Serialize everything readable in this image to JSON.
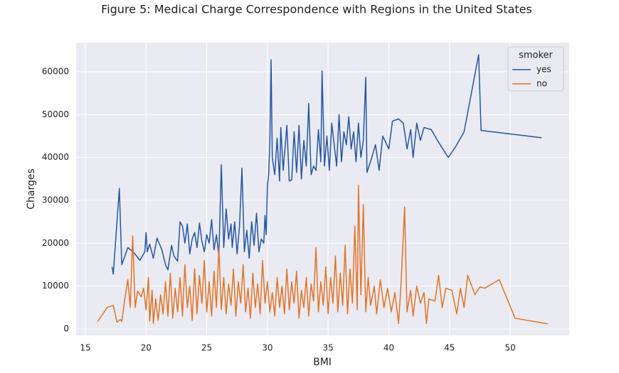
{
  "chart_data": {
    "type": "line",
    "title": "Figure 5: Medical Charge Correspondence with Regions in the United States",
    "x_label": "BMI",
    "y_label": "Charges",
    "xlim": [
      14.24,
      54.86
    ],
    "ylim": [
      -1490,
      66800
    ],
    "xticks": [
      15,
      20,
      25,
      30,
      35,
      40,
      45,
      50
    ],
    "yticks": [
      0,
      10000,
      20000,
      30000,
      40000,
      50000,
      60000
    ],
    "grid": true,
    "legend_title": "smoker",
    "legend_position": "upper right",
    "series": [
      {
        "name": "yes",
        "color": "#2456a0",
        "x": [
          17.2,
          17.3,
          17.8,
          18.0,
          18.5,
          19.0,
          19.5,
          19.9,
          20.0,
          20.1,
          20.3,
          20.6,
          20.9,
          21.3,
          21.6,
          21.8,
          22.1,
          22.3,
          22.6,
          22.8,
          23.0,
          23.2,
          23.4,
          23.6,
          23.8,
          24.0,
          24.2,
          24.4,
          24.6,
          24.8,
          25.0,
          25.2,
          25.4,
          25.6,
          25.8,
          26.0,
          26.2,
          26.4,
          26.6,
          26.8,
          27.0,
          27.1,
          27.3,
          27.5,
          27.7,
          27.9,
          28.1,
          28.3,
          28.5,
          28.7,
          28.9,
          29.1,
          29.3,
          29.5,
          29.7,
          29.8,
          29.9,
          30.0,
          30.1,
          30.2,
          30.3,
          30.4,
          30.6,
          30.8,
          31.0,
          31.1,
          31.3,
          31.6,
          31.8,
          32.0,
          32.2,
          32.4,
          32.6,
          32.8,
          33.0,
          33.2,
          33.4,
          33.6,
          33.8,
          34.0,
          34.2,
          34.4,
          34.5,
          34.7,
          34.9,
          35.1,
          35.3,
          35.5,
          35.7,
          35.9,
          36.1,
          36.3,
          36.5,
          36.7,
          36.9,
          37.1,
          37.3,
          37.5,
          37.7,
          37.9,
          38.1,
          38.2,
          38.6,
          38.9,
          39.2,
          39.5,
          40.0,
          40.3,
          40.8,
          41.2,
          41.5,
          41.8,
          42.0,
          42.3,
          42.6,
          42.9,
          43.5,
          44.0,
          44.9,
          45.5,
          46.2,
          47.4,
          47.6,
          52.6
        ],
        "values": [
          14500,
          12800,
          32800,
          15000,
          19000,
          17800,
          16000,
          18000,
          22500,
          18000,
          19800,
          16500,
          21200,
          18500,
          15000,
          13800,
          19500,
          17000,
          15800,
          25000,
          24000,
          20000,
          24500,
          17500,
          21000,
          22500,
          19000,
          24700,
          20500,
          18000,
          22000,
          20000,
          25500,
          18500,
          22000,
          17000,
          38300,
          19000,
          28000,
          21000,
          24500,
          19000,
          25000,
          17500,
          24000,
          37500,
          18000,
          23000,
          16500,
          25000,
          19500,
          27000,
          18000,
          21000,
          20000,
          26500,
          22000,
          33500,
          36000,
          44000,
          62800,
          40000,
          36000,
          44500,
          34500,
          47000,
          37000,
          47500,
          34500,
          34800,
          46000,
          36500,
          47500,
          35000,
          44000,
          38000,
          52600,
          36000,
          38000,
          37000,
          46500,
          39000,
          60200,
          38000,
          45000,
          37000,
          48000,
          43000,
          38000,
          50000,
          39000,
          46000,
          43000,
          49500,
          42000,
          46000,
          39000,
          48000,
          40000,
          44000,
          58700,
          36500,
          40000,
          43000,
          37000,
          45000,
          42000,
          48500,
          49000,
          48000,
          42000,
          46500,
          40000,
          48000,
          44000,
          47000,
          46500,
          44000,
          40000,
          42500,
          46000,
          64000,
          46300,
          44600
        ]
      },
      {
        "name": "no",
        "color": "#e07427",
        "x": [
          16.0,
          16.8,
          17.3,
          17.6,
          17.9,
          18.0,
          18.2,
          18.5,
          18.7,
          18.9,
          19.1,
          19.3,
          19.6,
          19.8,
          20.0,
          20.2,
          20.3,
          20.5,
          20.6,
          20.8,
          21.0,
          21.2,
          21.4,
          21.6,
          21.8,
          22.0,
          22.2,
          22.4,
          22.6,
          22.8,
          23.0,
          23.2,
          23.4,
          23.6,
          23.8,
          24.0,
          24.2,
          24.4,
          24.6,
          24.8,
          25.0,
          25.2,
          25.4,
          25.6,
          25.8,
          26.0,
          26.2,
          26.4,
          26.6,
          26.8,
          27.0,
          27.2,
          27.4,
          27.6,
          27.8,
          28.0,
          28.2,
          28.4,
          28.6,
          28.8,
          29.0,
          29.2,
          29.4,
          29.6,
          29.8,
          30.0,
          30.2,
          30.4,
          30.6,
          30.8,
          31.0,
          31.2,
          31.4,
          31.6,
          31.8,
          32.0,
          32.2,
          32.4,
          32.6,
          32.8,
          33.0,
          33.2,
          33.4,
          33.6,
          33.8,
          34.0,
          34.2,
          34.4,
          34.6,
          34.8,
          35.0,
          35.2,
          35.4,
          35.6,
          35.8,
          36.0,
          36.2,
          36.4,
          36.6,
          36.8,
          37.0,
          37.2,
          37.4,
          37.5,
          37.7,
          37.9,
          38.1,
          38.3,
          38.5,
          38.8,
          39.0,
          39.3,
          39.6,
          39.9,
          40.2,
          40.5,
          40.8,
          41.0,
          41.3,
          41.5,
          41.8,
          42.0,
          42.3,
          42.6,
          42.9,
          43.1,
          43.3,
          43.8,
          44.1,
          44.4,
          44.7,
          45.2,
          45.6,
          45.9,
          46.2,
          46.5,
          47.1,
          47.5,
          47.9,
          49.1,
          50.4,
          53.1
        ],
        "values": [
          1700,
          5000,
          5500,
          1600,
          2200,
          1700,
          6000,
          11500,
          5000,
          21700,
          5000,
          8800,
          7500,
          9500,
          4500,
          12000,
          1800,
          9000,
          1300,
          7000,
          2000,
          8000,
          3500,
          11000,
          3000,
          13000,
          2500,
          9500,
          4000,
          12000,
          3000,
          15000,
          5000,
          10000,
          2000,
          14000,
          3500,
          12500,
          6000,
          16000,
          4000,
          11000,
          3000,
          13500,
          5000,
          19000,
          4500,
          12000,
          3500,
          10500,
          5500,
          14000,
          3000,
          11000,
          6000,
          15000,
          4000,
          9500,
          2500,
          13000,
          5000,
          10500,
          3500,
          16000,
          6000,
          11000,
          4000,
          8500,
          3000,
          12000,
          5000,
          10000,
          3500,
          14000,
          4500,
          11000,
          6000,
          13500,
          2500,
          9000,
          5000,
          12000,
          3000,
          10500,
          6500,
          19000,
          4000,
          11000,
          5500,
          14500,
          3500,
          12000,
          6000,
          17000,
          4000,
          13000,
          5500,
          19500,
          3500,
          14000,
          6000,
          24000,
          4500,
          33500,
          8000,
          29000,
          4000,
          12000,
          5500,
          10000,
          3500,
          11500,
          5000,
          9500,
          4000,
          8500,
          1300,
          10000,
          28500,
          4000,
          9000,
          3000,
          10000,
          6000,
          8500,
          1300,
          7000,
          6500,
          12500,
          5000,
          9500,
          9000,
          3500,
          9500,
          5000,
          12500,
          8000,
          9800,
          9500,
          11500,
          2500,
          1200
        ]
      }
    ]
  }
}
